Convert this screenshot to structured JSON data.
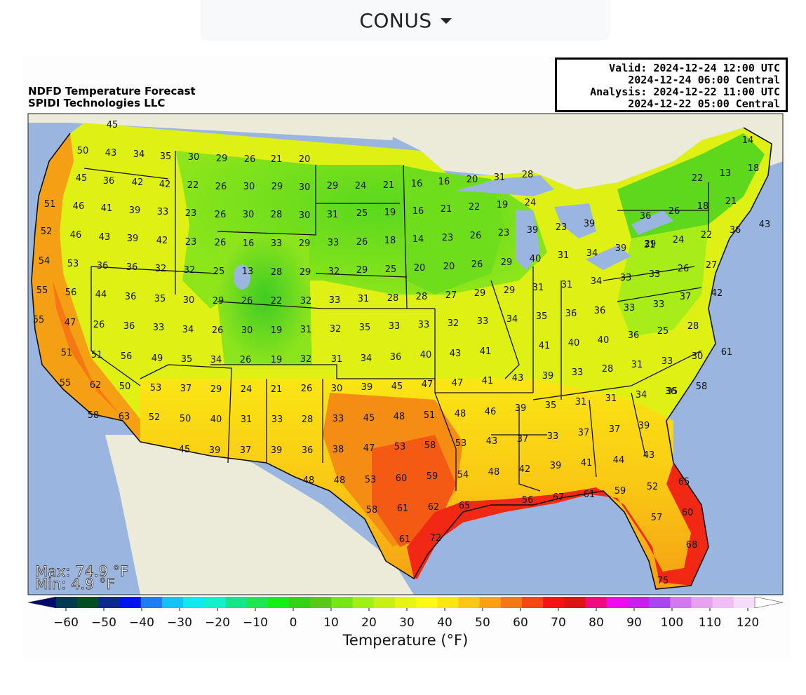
{
  "region_selector": {
    "label": "CONUS"
  },
  "header": {
    "line1": "NDFD Temperature Forecast",
    "line2": "SPIDI Technologies LLC"
  },
  "valid_box": {
    "valid_utc": "Valid: 2024-12-24 12:00 UTC",
    "valid_central": "2024-12-24 06:00 Central",
    "analysis_utc": "Analysis: 2024-12-22 11:00 UTC",
    "analysis_central": "2024-12-22 05:00 Central"
  },
  "stats": {
    "max": "Max: 74.9 °F",
    "min": "Min: 4.9 °F"
  },
  "colorbar": {
    "title": "Temperature (°F)",
    "ticks": [
      "−60",
      "−50",
      "−40",
      "−30",
      "−20",
      "−10",
      "0",
      "10",
      "20",
      "30",
      "40",
      "50",
      "60",
      "70",
      "80",
      "90",
      "100",
      "110",
      "120"
    ],
    "colors": [
      "#000b6b",
      "#003a50",
      "#004f22",
      "#0a2a8f",
      "#0014f0",
      "#1e7cf5",
      "#13c3f5",
      "#10e8f0",
      "#14f0c8",
      "#14e68c",
      "#1ee650",
      "#14f014",
      "#32d214",
      "#5ac814",
      "#78e614",
      "#a0f014",
      "#c8f014",
      "#e6f514",
      "#fafa14",
      "#fae614",
      "#fac814",
      "#faa014",
      "#f57814",
      "#f54614",
      "#f51414",
      "#dc1414",
      "#f00a7d",
      "#f00af0",
      "#c81ef0",
      "#a846f0",
      "#d278f0",
      "#e8a0f0",
      "#f0bef5",
      "#f5dcf8",
      "#ffffff"
    ]
  },
  "chart_data": {
    "type": "map",
    "field": "Temperature (°F)",
    "stats": {
      "max_f": 74.9,
      "min_f": 4.9
    },
    "colorbar_range_f": [
      -60,
      120
    ],
    "point_values": [
      {
        "v": "45"
      },
      {
        "v": "50"
      },
      {
        "v": "43"
      },
      {
        "v": "34"
      },
      {
        "v": "35"
      },
      {
        "v": "30"
      },
      {
        "v": "29"
      },
      {
        "v": "26"
      },
      {
        "v": "21"
      },
      {
        "v": "20"
      },
      {
        "v": "14"
      },
      {
        "v": "45"
      },
      {
        "v": "36"
      },
      {
        "v": "42"
      },
      {
        "v": "42"
      },
      {
        "v": "22"
      },
      {
        "v": "26"
      },
      {
        "v": "30"
      },
      {
        "v": "29"
      },
      {
        "v": "30"
      },
      {
        "v": "29"
      },
      {
        "v": "24"
      },
      {
        "v": "21"
      },
      {
        "v": "16"
      },
      {
        "v": "16"
      },
      {
        "v": "20"
      },
      {
        "v": "31"
      },
      {
        "v": "28"
      },
      {
        "v": "22"
      },
      {
        "v": "13"
      },
      {
        "v": "18"
      },
      {
        "v": "51"
      },
      {
        "v": "46"
      },
      {
        "v": "41"
      },
      {
        "v": "39"
      },
      {
        "v": "33"
      },
      {
        "v": "23"
      },
      {
        "v": "26"
      },
      {
        "v": "30"
      },
      {
        "v": "28"
      },
      {
        "v": "30"
      },
      {
        "v": "31"
      },
      {
        "v": "25"
      },
      {
        "v": "19"
      },
      {
        "v": "16"
      },
      {
        "v": "21"
      },
      {
        "v": "22"
      },
      {
        "v": "19"
      },
      {
        "v": "24"
      },
      {
        "v": "36"
      },
      {
        "v": "26"
      },
      {
        "v": "18"
      },
      {
        "v": "21"
      },
      {
        "v": "52"
      },
      {
        "v": "46"
      },
      {
        "v": "43"
      },
      {
        "v": "39"
      },
      {
        "v": "42"
      },
      {
        "v": "23"
      },
      {
        "v": "26"
      },
      {
        "v": "16"
      },
      {
        "v": "33"
      },
      {
        "v": "29"
      },
      {
        "v": "33"
      },
      {
        "v": "26"
      },
      {
        "v": "18"
      },
      {
        "v": "14"
      },
      {
        "v": "23"
      },
      {
        "v": "26"
      },
      {
        "v": "23"
      },
      {
        "v": "39"
      },
      {
        "v": "23"
      },
      {
        "v": "39"
      },
      {
        "v": "29"
      },
      {
        "v": "24"
      },
      {
        "v": "22"
      },
      {
        "v": "36"
      },
      {
        "v": "43"
      },
      {
        "v": "54"
      },
      {
        "v": "53"
      },
      {
        "v": "36"
      },
      {
        "v": "36"
      },
      {
        "v": "32"
      },
      {
        "v": "32"
      },
      {
        "v": "25"
      },
      {
        "v": "13"
      },
      {
        "v": "28"
      },
      {
        "v": "29"
      },
      {
        "v": "32"
      },
      {
        "v": "29"
      },
      {
        "v": "25"
      },
      {
        "v": "20"
      },
      {
        "v": "20"
      },
      {
        "v": "26"
      },
      {
        "v": "29"
      },
      {
        "v": "40"
      },
      {
        "v": "31"
      },
      {
        "v": "34"
      },
      {
        "v": "39"
      },
      {
        "v": "31"
      },
      {
        "v": "26"
      },
      {
        "v": "27"
      },
      {
        "v": "55"
      },
      {
        "v": "56"
      },
      {
        "v": "44"
      },
      {
        "v": "36"
      },
      {
        "v": "35"
      },
      {
        "v": "30"
      },
      {
        "v": "29"
      },
      {
        "v": "26"
      },
      {
        "v": "22"
      },
      {
        "v": "32"
      },
      {
        "v": "33"
      },
      {
        "v": "31"
      },
      {
        "v": "28"
      },
      {
        "v": "28"
      },
      {
        "v": "27"
      },
      {
        "v": "29"
      },
      {
        "v": "29"
      },
      {
        "v": "31"
      },
      {
        "v": "31"
      },
      {
        "v": "34"
      },
      {
        "v": "33"
      },
      {
        "v": "33"
      },
      {
        "v": "37"
      },
      {
        "v": "42"
      },
      {
        "v": "55"
      },
      {
        "v": "47"
      },
      {
        "v": "26"
      },
      {
        "v": "36"
      },
      {
        "v": "33"
      },
      {
        "v": "34"
      },
      {
        "v": "26"
      },
      {
        "v": "30"
      },
      {
        "v": "19"
      },
      {
        "v": "31"
      },
      {
        "v": "32"
      },
      {
        "v": "35"
      },
      {
        "v": "33"
      },
      {
        "v": "33"
      },
      {
        "v": "32"
      },
      {
        "v": "33"
      },
      {
        "v": "34"
      },
      {
        "v": "35"
      },
      {
        "v": "36"
      },
      {
        "v": "36"
      },
      {
        "v": "33"
      },
      {
        "v": "33"
      },
      {
        "v": "25"
      },
      {
        "v": "28"
      },
      {
        "v": "51"
      },
      {
        "v": "51"
      },
      {
        "v": "56"
      },
      {
        "v": "49"
      },
      {
        "v": "35"
      },
      {
        "v": "34"
      },
      {
        "v": "26"
      },
      {
        "v": "19"
      },
      {
        "v": "32"
      },
      {
        "v": "31"
      },
      {
        "v": "34"
      },
      {
        "v": "36"
      },
      {
        "v": "40"
      },
      {
        "v": "43"
      },
      {
        "v": "41"
      },
      {
        "v": "41"
      },
      {
        "v": "40"
      },
      {
        "v": "40"
      },
      {
        "v": "36"
      },
      {
        "v": "30"
      },
      {
        "v": "61"
      },
      {
        "v": "55"
      },
      {
        "v": "62"
      },
      {
        "v": "50"
      },
      {
        "v": "53"
      },
      {
        "v": "37"
      },
      {
        "v": "29"
      },
      {
        "v": "24"
      },
      {
        "v": "21"
      },
      {
        "v": "26"
      },
      {
        "v": "30"
      },
      {
        "v": "39"
      },
      {
        "v": "45"
      },
      {
        "v": "47"
      },
      {
        "v": "47"
      },
      {
        "v": "41"
      },
      {
        "v": "43"
      },
      {
        "v": "39"
      },
      {
        "v": "33"
      },
      {
        "v": "28"
      },
      {
        "v": "31"
      },
      {
        "v": "33"
      },
      {
        "v": "35"
      },
      {
        "v": "58"
      },
      {
        "v": "58"
      },
      {
        "v": "63"
      },
      {
        "v": "52"
      },
      {
        "v": "50"
      },
      {
        "v": "40"
      },
      {
        "v": "31"
      },
      {
        "v": "33"
      },
      {
        "v": "28"
      },
      {
        "v": "33"
      },
      {
        "v": "45"
      },
      {
        "v": "48"
      },
      {
        "v": "51"
      },
      {
        "v": "48"
      },
      {
        "v": "46"
      },
      {
        "v": "39"
      },
      {
        "v": "35"
      },
      {
        "v": "31"
      },
      {
        "v": "31"
      },
      {
        "v": "34"
      },
      {
        "v": "36"
      },
      {
        "v": "45"
      },
      {
        "v": "39"
      },
      {
        "v": "37"
      },
      {
        "v": "39"
      },
      {
        "v": "36"
      },
      {
        "v": "38"
      },
      {
        "v": "47"
      },
      {
        "v": "53"
      },
      {
        "v": "58"
      },
      {
        "v": "53"
      },
      {
        "v": "43"
      },
      {
        "v": "37"
      },
      {
        "v": "33"
      },
      {
        "v": "37"
      },
      {
        "v": "37"
      },
      {
        "v": "39"
      },
      {
        "v": "44"
      },
      {
        "v": "43"
      },
      {
        "v": "48"
      },
      {
        "v": "48"
      },
      {
        "v": "53"
      },
      {
        "v": "60"
      },
      {
        "v": "59"
      },
      {
        "v": "54"
      },
      {
        "v": "48"
      },
      {
        "v": "42"
      },
      {
        "v": "39"
      },
      {
        "v": "41"
      },
      {
        "v": "52"
      },
      {
        "v": "65"
      },
      {
        "v": "58"
      },
      {
        "v": "61"
      },
      {
        "v": "62"
      },
      {
        "v": "65"
      },
      {
        "v": "56"
      },
      {
        "v": "67"
      },
      {
        "v": "61"
      },
      {
        "v": "59"
      },
      {
        "v": "57"
      },
      {
        "v": "60"
      },
      {
        "v": "61"
      },
      {
        "v": "72"
      },
      {
        "v": "68"
      },
      {
        "v": "75"
      }
    ]
  }
}
